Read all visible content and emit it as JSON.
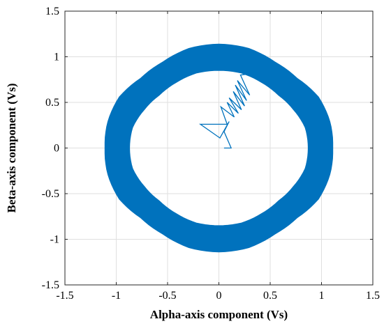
{
  "chart_data": {
    "type": "scatter",
    "title": "",
    "xlabel": "Alpha-axis component (Vs)",
    "ylabel": "Beta-axis component (Vs)",
    "xlim": [
      -1.5,
      1.5
    ],
    "ylim": [
      -1.5,
      1.5
    ],
    "xticks": [
      -1.5,
      -1,
      -0.5,
      0,
      0.5,
      1,
      1.5
    ],
    "yticks": [
      -1.5,
      -1,
      -0.5,
      0,
      0.5,
      1,
      1.5
    ],
    "xtick_labels": [
      "-1.5",
      "-1",
      "-0.5",
      "0",
      "0.5",
      "1",
      "1.5"
    ],
    "ytick_labels": [
      "-1.5",
      "-1",
      "-0.5",
      "0",
      "0.5",
      "1",
      "1.5"
    ],
    "grid": true,
    "series": [
      {
        "color": "#0072BD",
        "description_kind": "flux trajectory",
        "ring": {
          "outer_radius": [
            [
              0,
              1.11
            ],
            [
              15,
              1.12
            ],
            [
              30,
              1.12
            ],
            [
              45,
              1.08
            ],
            [
              60,
              1.09
            ],
            [
              75,
              1.13
            ],
            [
              90,
              1.14
            ],
            [
              105,
              1.13
            ],
            [
              120,
              1.09
            ],
            [
              135,
              1.08
            ],
            [
              150,
              1.12
            ],
            [
              165,
              1.12
            ],
            [
              180,
              1.11
            ],
            [
              195,
              1.12
            ],
            [
              210,
              1.12
            ],
            [
              225,
              1.08
            ],
            [
              240,
              1.09
            ],
            [
              255,
              1.13
            ],
            [
              270,
              1.14
            ],
            [
              285,
              1.13
            ],
            [
              300,
              1.09
            ],
            [
              315,
              1.08
            ],
            [
              330,
              1.12
            ],
            [
              345,
              1.12
            ],
            [
              360,
              1.11
            ]
          ],
          "inner_radius": [
            [
              0,
              0.87
            ],
            [
              15,
              0.87
            ],
            [
              30,
              0.84
            ],
            [
              45,
              0.82
            ],
            [
              60,
              0.83
            ],
            [
              75,
              0.85
            ],
            [
              90,
              0.85
            ],
            [
              105,
              0.85
            ],
            [
              120,
              0.83
            ],
            [
              135,
              0.82
            ],
            [
              150,
              0.84
            ],
            [
              165,
              0.87
            ],
            [
              180,
              0.87
            ],
            [
              195,
              0.87
            ],
            [
              210,
              0.84
            ],
            [
              225,
              0.82
            ],
            [
              240,
              0.83
            ],
            [
              255,
              0.85
            ],
            [
              270,
              0.85
            ],
            [
              285,
              0.85
            ],
            [
              300,
              0.83
            ],
            [
              315,
              0.82
            ],
            [
              330,
              0.84
            ],
            [
              345,
              0.87
            ],
            [
              360,
              0.87
            ]
          ]
        },
        "startup_path": {
          "x": [
            0.05,
            0.12,
            0.05,
            0.1,
            0.01,
            -0.18,
            0.08,
            0.02,
            0.15,
            0.08,
            0.19,
            0.1,
            0.22,
            0.14,
            0.25,
            0.16,
            0.27,
            0.18,
            0.3,
            0.21,
            0.35,
            0.24
          ],
          "y": [
            0.0,
            0.0,
            0.18,
            0.29,
            0.11,
            0.26,
            0.26,
            0.45,
            0.34,
            0.5,
            0.38,
            0.55,
            0.42,
            0.62,
            0.46,
            0.69,
            0.52,
            0.74,
            0.58,
            0.8,
            0.82,
            0.86
          ]
        }
      }
    ]
  }
}
